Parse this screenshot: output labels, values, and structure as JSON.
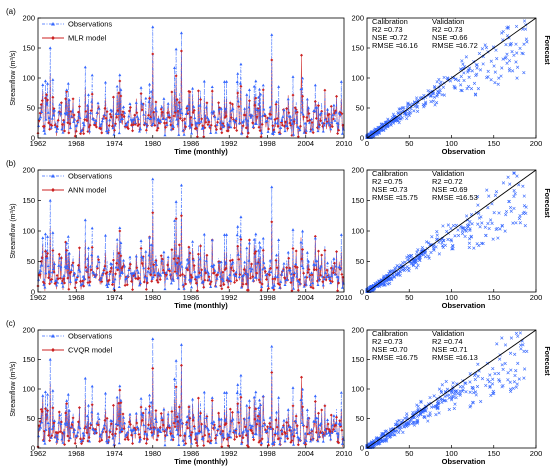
{
  "figure": {
    "panels": [
      {
        "label": "(a)",
        "model": "MLR model"
      },
      {
        "label": "(b)",
        "model": "ANN model"
      },
      {
        "label": "(c)",
        "model": "CVQR model"
      }
    ],
    "observations_label": "Observations",
    "ts_xlabel": "Time (monthly)",
    "ts_ylabel": "Streamflow (m³/s)",
    "sc_xlabel": "Observation",
    "sc_ylabel": "Forecast",
    "calibration_title": "Calibration",
    "validation_title": "Validation",
    "ts_xticks": [
      "1962",
      "1968",
      "1974",
      "1980",
      "1986",
      "1992",
      "1998",
      "2004",
      "2010"
    ],
    "ts_yticks": [
      "0",
      "50",
      "100",
      "150",
      "200"
    ],
    "sc_ticks": [
      "0",
      "50",
      "100",
      "150",
      "200"
    ]
  },
  "chart_data": [
    {
      "type": "line",
      "panel": "(a)",
      "title": "",
      "xlabel": "Time (monthly)",
      "ylabel": "Streamflow (m³/s)",
      "xlim": [
        1962,
        2010
      ],
      "ylim": [
        0,
        200
      ],
      "legend": "top-left",
      "series": [
        {
          "name": "Observations",
          "color": "#3366ff",
          "marker": "triangle",
          "line": "dash-dot",
          "peaks": [
            [
              1963.2,
              95
            ],
            [
              1963.9,
              150
            ],
            [
              1969.4,
              118
            ],
            [
              1974.8,
              105
            ],
            [
              1980.0,
              185
            ],
            [
              1983.7,
              148
            ],
            [
              1984.5,
              175
            ],
            [
              1993.8,
              123
            ],
            [
              1998.7,
              172
            ],
            [
              2002.0,
              102
            ],
            [
              2005.5,
              88
            ]
          ]
        },
        {
          "name": "MLR model",
          "color": "#cc2222",
          "marker": "diamond",
          "line": "solid",
          "peaks": [
            [
              1963.9,
              108
            ],
            [
              1974.8,
              95
            ],
            [
              1980.0,
              140
            ],
            [
              1984.5,
              145
            ],
            [
              1998.7,
              130
            ],
            [
              2003.3,
              138
            ]
          ]
        }
      ]
    },
    {
      "type": "scatter",
      "panel": "(a)",
      "xlabel": "Observation",
      "ylabel": "Forecast",
      "xlim": [
        0,
        200
      ],
      "ylim": [
        0,
        200
      ],
      "reference_line": "1:1",
      "series_color": "#3366ff",
      "marker": "x",
      "stats": {
        "calibration": {
          "R2": "0.73",
          "NSE": "0.72",
          "RMSE": "16.16"
        },
        "validation": {
          "R2": "0.73",
          "NSE": "0.66",
          "RMSE": "16.72"
        }
      }
    },
    {
      "type": "line",
      "panel": "(b)",
      "title": "",
      "xlabel": "Time (monthly)",
      "ylabel": "Streamflow (m³/s)",
      "xlim": [
        1962,
        2010
      ],
      "ylim": [
        0,
        200
      ],
      "legend": "top-left",
      "series": [
        {
          "name": "Observations",
          "color": "#3366ff",
          "marker": "triangle",
          "line": "dash-dot",
          "peaks": [
            [
              1963.2,
              95
            ],
            [
              1963.9,
              150
            ],
            [
              1969.4,
              118
            ],
            [
              1974.8,
              105
            ],
            [
              1980.0,
              185
            ],
            [
              1983.7,
              148
            ],
            [
              1984.5,
              175
            ],
            [
              1993.8,
              123
            ],
            [
              1998.7,
              172
            ],
            [
              2002.0,
              102
            ],
            [
              2005.5,
              88
            ]
          ]
        },
        {
          "name": "ANN model",
          "color": "#cc2222",
          "marker": "diamond",
          "line": "solid",
          "peaks": [
            [
              1963.9,
              105
            ],
            [
              1974.8,
              100
            ],
            [
              1980.0,
              130
            ],
            [
              1983.7,
              120
            ],
            [
              1984.5,
              125
            ],
            [
              1998.7,
              115
            ]
          ]
        }
      ]
    },
    {
      "type": "scatter",
      "panel": "(b)",
      "xlabel": "Observation",
      "ylabel": "Forecast",
      "xlim": [
        0,
        200
      ],
      "ylim": [
        0,
        200
      ],
      "reference_line": "1:1",
      "series_color": "#3366ff",
      "marker": "x",
      "stats": {
        "calibration": {
          "R2": "0.75",
          "NSE": "0.73",
          "RMSE": "15.75"
        },
        "validation": {
          "R2": "0.72",
          "NSE": "0.69",
          "RMSE": "16.53"
        }
      }
    },
    {
      "type": "line",
      "panel": "(c)",
      "title": "",
      "xlabel": "Time (monthly)",
      "ylabel": "Streamflow (m³/s)",
      "xlim": [
        1962,
        2010
      ],
      "ylim": [
        0,
        200
      ],
      "legend": "top-left",
      "series": [
        {
          "name": "Observations",
          "color": "#3366ff",
          "marker": "triangle",
          "line": "dash-dot",
          "peaks": [
            [
              1963.2,
              95
            ],
            [
              1963.9,
              150
            ],
            [
              1969.4,
              118
            ],
            [
              1974.8,
              105
            ],
            [
              1980.0,
              185
            ],
            [
              1983.7,
              148
            ],
            [
              1984.5,
              175
            ],
            [
              1993.8,
              123
            ],
            [
              1998.7,
              172
            ],
            [
              2002.0,
              102
            ],
            [
              2005.5,
              88
            ]
          ]
        },
        {
          "name": "CVQR model",
          "color": "#cc2222",
          "marker": "diamond",
          "line": "solid",
          "peaks": [
            [
              1963.9,
              110
            ],
            [
              1974.8,
              98
            ],
            [
              1980.0,
              135
            ],
            [
              1984.5,
              140
            ],
            [
              1998.7,
              128
            ],
            [
              2003.3,
              120
            ]
          ]
        }
      ]
    },
    {
      "type": "scatter",
      "panel": "(c)",
      "xlabel": "Observation",
      "ylabel": "Forecast",
      "xlim": [
        0,
        200
      ],
      "ylim": [
        0,
        200
      ],
      "reference_line": "1:1",
      "series_color": "#3366ff",
      "marker": "x",
      "stats": {
        "calibration": {
          "R2": "0.73",
          "NSE": "0.70",
          "RMSE": "16.75"
        },
        "validation": {
          "R2": "0.74",
          "NSE": "0.71",
          "RMSE": "16.13"
        }
      }
    }
  ]
}
